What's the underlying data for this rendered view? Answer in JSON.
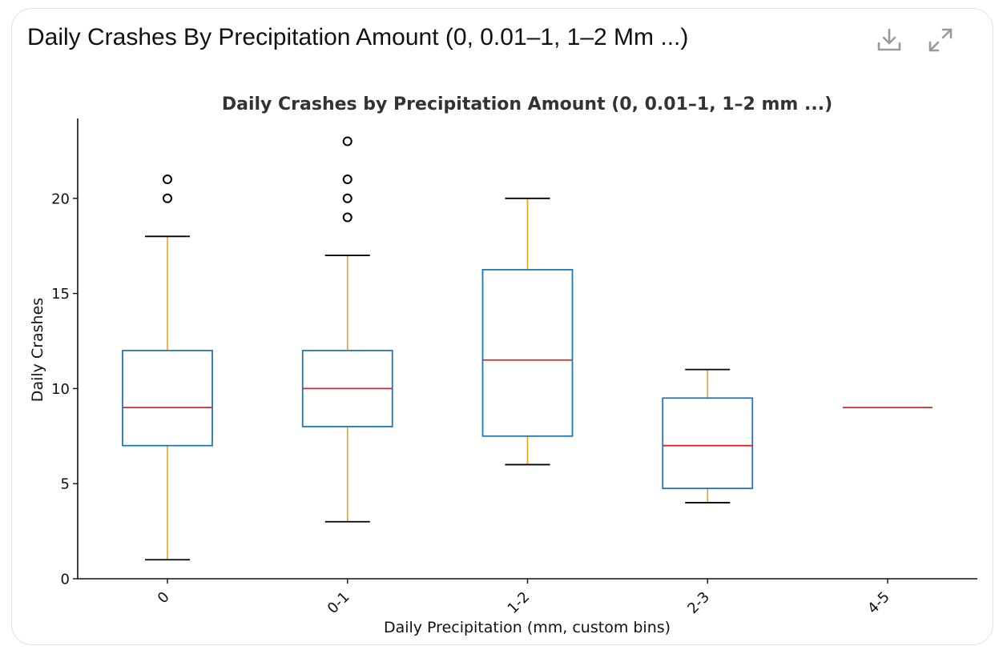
{
  "card": {
    "title": "Daily Crashes By Precipitation Amount (0, 0.01–1, 1–2 Mm ...)",
    "icons": {
      "download": "download-icon",
      "expand": "expand-icon"
    }
  },
  "colors": {
    "box": "#1f77b4",
    "median": "#d62728",
    "whisker": "#e8a317",
    "cap": "#000000",
    "flier": "#000000",
    "axis": "#111111",
    "title": "#333333"
  },
  "chart_data": {
    "type": "box",
    "title": "Daily Crashes by Precipitation Amount (0, 0.01–1, 1–2 mm ...)",
    "xlabel": "Daily Precipitation (mm, custom bins)",
    "ylabel": "Daily Crashes",
    "ylim": [
      0,
      24.2
    ],
    "yticks": [
      0,
      5,
      10,
      15,
      20
    ],
    "categories": [
      "0",
      "0-1",
      "1-2",
      "2-3",
      "4-5"
    ],
    "boxes": [
      {
        "category": "0",
        "whisker_low": 1,
        "q1": 7,
        "median": 9,
        "q3": 12,
        "whisker_high": 18,
        "fliers": [
          20,
          21
        ]
      },
      {
        "category": "0-1",
        "whisker_low": 3,
        "q1": 8,
        "median": 10,
        "q3": 12,
        "whisker_high": 17,
        "fliers": [
          19,
          20,
          21,
          23
        ]
      },
      {
        "category": "1-2",
        "whisker_low": 6,
        "q1": 7.5,
        "median": 11.5,
        "q3": 16.25,
        "whisker_high": 20,
        "fliers": []
      },
      {
        "category": "2-3",
        "whisker_low": 4,
        "q1": 4.75,
        "median": 7,
        "q3": 9.5,
        "whisker_high": 11,
        "fliers": []
      },
      {
        "category": "4-5",
        "whisker_low": 9,
        "q1": 9,
        "median": 9,
        "q3": 9,
        "whisker_high": 9,
        "fliers": []
      }
    ]
  }
}
